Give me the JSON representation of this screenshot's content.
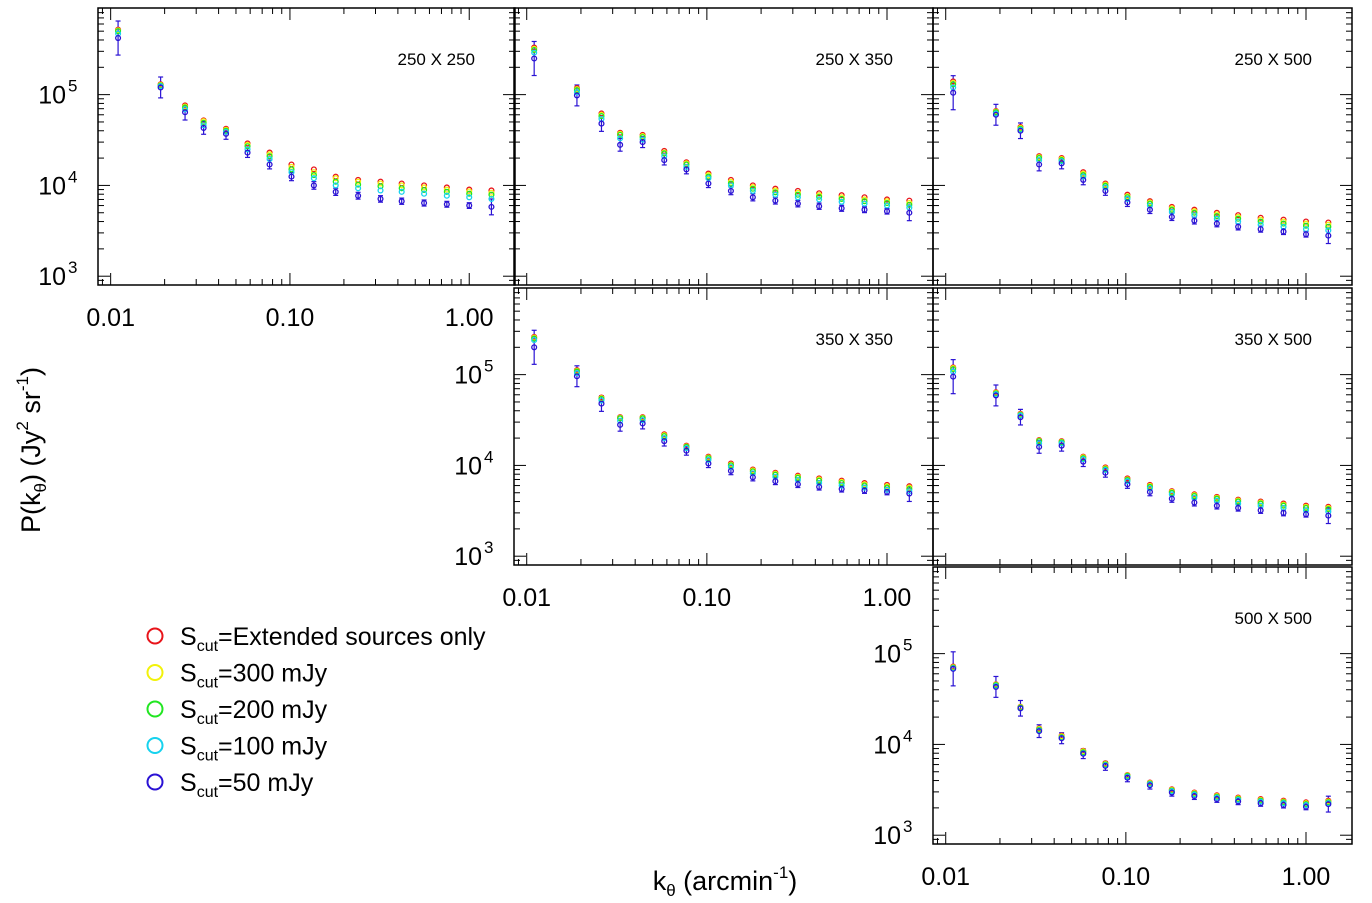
{
  "figure": {
    "y_label_main": "P(k",
    "y_label_sub": "θ",
    "y_label_close": ") (Jy",
    "y_label_sup2": "2",
    "y_label_sr": " sr",
    "y_label_supm1": "-1",
    "y_label_end": ")",
    "x_label_main": "k",
    "x_label_sub": "θ",
    "x_label_paren": " (arcmin",
    "x_label_sup": "-1",
    "x_label_end": ")"
  },
  "legend": [
    {
      "prefix": "S",
      "sub": "cut",
      "text": "=Extended sources only",
      "color": "#e8141a"
    },
    {
      "prefix": "S",
      "sub": "cut",
      "text": "=300 mJy",
      "color": "#f2f20a"
    },
    {
      "prefix": "S",
      "sub": "cut",
      "text": "=200 mJy",
      "color": "#22e622"
    },
    {
      "prefix": "S",
      "sub": "cut",
      "text": "=100 mJy",
      "color": "#16d2ee"
    },
    {
      "prefix": "S",
      "sub": "cut",
      "text": "=50 mJy",
      "color": "#2a12d4"
    }
  ],
  "chart_data": [
    {
      "type": "scatter",
      "title": "250 X 250",
      "xscale": "log",
      "yscale": "log",
      "xlim": [
        0.0085,
        1.8
      ],
      "ylim": [
        800,
        900000
      ],
      "x": [
        0.011,
        0.019,
        0.026,
        0.033,
        0.044,
        0.058,
        0.077,
        0.102,
        0.136,
        0.18,
        0.24,
        0.32,
        0.42,
        0.56,
        0.75,
        1.0,
        1.33
      ],
      "xticks": [
        "0.01",
        "0.10",
        "1.00"
      ],
      "show_xticks": true,
      "yticks": [
        {
          "b": "10",
          "e": "3"
        },
        {
          "b": "10",
          "e": "4"
        },
        {
          "b": "10",
          "e": "5"
        }
      ],
      "series": [
        {
          "color": "#e8141a",
          "values": [
            520000,
            130000,
            76000,
            52000,
            42000,
            29000,
            23000,
            17000,
            15000,
            12500,
            11500,
            11000,
            10500,
            10000,
            9500,
            9000,
            8800
          ]
        },
        {
          "color": "#f2f20a",
          "values": [
            510000,
            128000,
            74000,
            51000,
            41000,
            28000,
            22000,
            16000,
            14000,
            12000,
            11000,
            10500,
            10000,
            9500,
            9000,
            8600,
            8300
          ]
        },
        {
          "color": "#22e622",
          "values": [
            500000,
            126000,
            72000,
            49000,
            40000,
            27000,
            21000,
            15000,
            13000,
            11000,
            10200,
            9800,
            9300,
            8900,
            8500,
            8100,
            7900
          ]
        },
        {
          "color": "#16d2ee",
          "values": [
            470000,
            124000,
            69000,
            46000,
            39000,
            25000,
            19500,
            14000,
            12000,
            10000,
            9300,
            8800,
            8500,
            8100,
            7700,
            7400,
            7100
          ]
        },
        {
          "color": "#2a12d4",
          "values": [
            420000,
            120000,
            64000,
            43000,
            37000,
            23000,
            17000,
            12500,
            10000,
            8500,
            7700,
            7100,
            6700,
            6400,
            6200,
            6000,
            5800
          ]
        }
      ]
    },
    {
      "type": "scatter",
      "title": "250 X 350",
      "xscale": "log",
      "yscale": "log",
      "xlim": [
        0.0085,
        1.8
      ],
      "ylim": [
        800,
        900000
      ],
      "x": [
        0.011,
        0.019,
        0.026,
        0.033,
        0.044,
        0.058,
        0.077,
        0.102,
        0.136,
        0.18,
        0.24,
        0.32,
        0.42,
        0.56,
        0.75,
        1.0,
        1.33
      ],
      "xticks": [],
      "show_xticks": false,
      "yticks": [],
      "series": [
        {
          "color": "#e8141a",
          "values": [
            330000,
            118000,
            62000,
            38000,
            36000,
            24000,
            18000,
            13500,
            11500,
            10000,
            9200,
            8700,
            8200,
            7800,
            7400,
            7000,
            6800
          ]
        },
        {
          "color": "#f2f20a",
          "values": [
            320000,
            115000,
            60000,
            37000,
            35000,
            23000,
            17500,
            13000,
            11000,
            9600,
            8800,
            8300,
            7800,
            7400,
            7000,
            6700,
            6400
          ]
        },
        {
          "color": "#22e622",
          "values": [
            310000,
            112000,
            58000,
            36000,
            34000,
            22500,
            17000,
            12500,
            10500,
            9200,
            8400,
            7900,
            7500,
            7100,
            6700,
            6400,
            6100
          ]
        },
        {
          "color": "#16d2ee",
          "values": [
            290000,
            106000,
            54000,
            33000,
            32000,
            21000,
            16000,
            12000,
            10000,
            8700,
            7900,
            7400,
            7000,
            6600,
            6300,
            6000,
            5700
          ]
        },
        {
          "color": "#2a12d4",
          "values": [
            250000,
            98000,
            48000,
            28000,
            30000,
            19000,
            15000,
            10500,
            8700,
            7400,
            6800,
            6300,
            5900,
            5600,
            5400,
            5200,
            5000
          ]
        }
      ]
    },
    {
      "type": "scatter",
      "title": "250 X 500",
      "xscale": "log",
      "yscale": "log",
      "xlim": [
        0.0085,
        1.8
      ],
      "ylim": [
        800,
        900000
      ],
      "x": [
        0.011,
        0.019,
        0.026,
        0.033,
        0.044,
        0.058,
        0.077,
        0.102,
        0.136,
        0.18,
        0.24,
        0.32,
        0.42,
        0.56,
        0.75,
        1.0,
        1.33
      ],
      "xticks": [],
      "show_xticks": false,
      "yticks": [],
      "series": [
        {
          "color": "#e8141a",
          "values": [
            140000,
            66000,
            44000,
            21000,
            20000,
            14000,
            10500,
            7900,
            6700,
            5800,
            5400,
            5000,
            4700,
            4400,
            4200,
            4000,
            3900
          ]
        },
        {
          "color": "#f2f20a",
          "values": [
            135000,
            65000,
            43000,
            20500,
            19500,
            13500,
            10200,
            7600,
            6500,
            5600,
            5200,
            4800,
            4500,
            4200,
            4000,
            3800,
            3700
          ]
        },
        {
          "color": "#22e622",
          "values": [
            130000,
            64000,
            42000,
            20000,
            19000,
            13000,
            9900,
            7400,
            6300,
            5400,
            5000,
            4600,
            4300,
            4000,
            3800,
            3600,
            3500
          ]
        },
        {
          "color": "#16d2ee",
          "values": [
            120000,
            62000,
            41000,
            19000,
            18500,
            12500,
            9500,
            7100,
            6000,
            5100,
            4700,
            4300,
            4000,
            3700,
            3500,
            3300,
            3200
          ]
        },
        {
          "color": "#2a12d4",
          "values": [
            105000,
            60000,
            40000,
            17000,
            17500,
            11500,
            8700,
            6500,
            5400,
            4500,
            4100,
            3800,
            3500,
            3300,
            3100,
            2900,
            2800
          ]
        }
      ]
    },
    {
      "type": "scatter",
      "title": "350 X 350",
      "xscale": "log",
      "yscale": "log",
      "xlim": [
        0.0085,
        1.8
      ],
      "ylim": [
        800,
        900000
      ],
      "x": [
        0.011,
        0.019,
        0.026,
        0.033,
        0.044,
        0.058,
        0.077,
        0.102,
        0.136,
        0.18,
        0.24,
        0.32,
        0.42,
        0.56,
        0.75,
        1.0,
        1.33
      ],
      "xticks": [
        "0.01",
        "0.10",
        "1.00"
      ],
      "show_xticks": true,
      "yticks": [
        {
          "b": "10",
          "e": "3"
        },
        {
          "b": "10",
          "e": "4"
        },
        {
          "b": "10",
          "e": "5"
        }
      ],
      "series": [
        {
          "color": "#e8141a",
          "values": [
            260000,
            112000,
            56000,
            34000,
            34000,
            22000,
            16500,
            12500,
            10500,
            9000,
            8300,
            7700,
            7200,
            6800,
            6400,
            6100,
            5900
          ]
        },
        {
          "color": "#f2f20a",
          "values": [
            255000,
            110000,
            55000,
            33500,
            33500,
            21500,
            16200,
            12200,
            10200,
            8800,
            8100,
            7500,
            7000,
            6600,
            6200,
            5900,
            5700
          ]
        },
        {
          "color": "#22e622",
          "values": [
            250000,
            108000,
            54000,
            33000,
            33000,
            21000,
            16000,
            12000,
            10000,
            8600,
            7900,
            7300,
            6800,
            6400,
            6000,
            5700,
            5500
          ]
        },
        {
          "color": "#16d2ee",
          "values": [
            240000,
            104000,
            52000,
            31000,
            31500,
            20000,
            15500,
            11500,
            9600,
            8200,
            7500,
            6900,
            6400,
            6000,
            5700,
            5400,
            5200
          ]
        },
        {
          "color": "#2a12d4",
          "values": [
            200000,
            96000,
            48000,
            28000,
            29000,
            18500,
            14500,
            10500,
            8700,
            7400,
            6700,
            6200,
            5800,
            5500,
            5300,
            5100,
            4900
          ]
        }
      ]
    },
    {
      "type": "scatter",
      "title": "350 X 500",
      "xscale": "log",
      "yscale": "log",
      "xlim": [
        0.0085,
        1.8
      ],
      "ylim": [
        800,
        900000
      ],
      "x": [
        0.011,
        0.019,
        0.026,
        0.033,
        0.044,
        0.058,
        0.077,
        0.102,
        0.136,
        0.18,
        0.24,
        0.32,
        0.42,
        0.56,
        0.75,
        1.0,
        1.33
      ],
      "xticks": [],
      "show_xticks": false,
      "yticks": [],
      "series": [
        {
          "color": "#e8141a",
          "values": [
            120000,
            64000,
            37000,
            19000,
            18500,
            12500,
            9500,
            7200,
            6100,
            5200,
            4800,
            4500,
            4200,
            4000,
            3800,
            3600,
            3500
          ]
        },
        {
          "color": "#f2f20a",
          "values": [
            118000,
            63000,
            36500,
            18700,
            18200,
            12300,
            9300,
            7000,
            5950,
            5100,
            4700,
            4400,
            4100,
            3900,
            3700,
            3500,
            3400
          ]
        },
        {
          "color": "#22e622",
          "values": [
            115000,
            62000,
            36000,
            18500,
            18000,
            12000,
            9100,
            6900,
            5800,
            5000,
            4600,
            4300,
            4000,
            3800,
            3600,
            3400,
            3300
          ]
        },
        {
          "color": "#16d2ee",
          "values": [
            108000,
            61000,
            35500,
            17500,
            17500,
            11700,
            8900,
            6700,
            5600,
            4800,
            4400,
            4100,
            3800,
            3600,
            3400,
            3200,
            3100
          ]
        },
        {
          "color": "#2a12d4",
          "values": [
            95000,
            59000,
            34000,
            16000,
            16500,
            11000,
            8300,
            6200,
            5100,
            4300,
            3900,
            3600,
            3400,
            3200,
            3000,
            2900,
            2800
          ]
        }
      ]
    },
    {
      "type": "scatter",
      "title": "500 X 500",
      "xscale": "log",
      "yscale": "log",
      "xlim": [
        0.0085,
        1.8
      ],
      "ylim": [
        800,
        900000
      ],
      "x": [
        0.011,
        0.019,
        0.026,
        0.033,
        0.044,
        0.058,
        0.077,
        0.102,
        0.136,
        0.18,
        0.24,
        0.32,
        0.42,
        0.56,
        0.75,
        1.0,
        1.33
      ],
      "xticks": [
        "0.01",
        "0.10",
        "1.00"
      ],
      "show_xticks": true,
      "yticks": [
        {
          "b": "10",
          "e": "3"
        },
        {
          "b": "10",
          "e": "4"
        },
        {
          "b": "10",
          "e": "5"
        }
      ],
      "series": [
        {
          "color": "#e8141a",
          "values": [
            72000,
            46000,
            26000,
            15000,
            12500,
            8500,
            6200,
            4600,
            3800,
            3200,
            2950,
            2750,
            2600,
            2500,
            2400,
            2300,
            2400
          ]
        },
        {
          "color": "#f2f20a",
          "values": [
            71000,
            45500,
            25800,
            14800,
            12300,
            8400,
            6100,
            4550,
            3750,
            3150,
            2900,
            2700,
            2550,
            2450,
            2350,
            2250,
            2350
          ]
        },
        {
          "color": "#22e622",
          "values": [
            70000,
            45000,
            25500,
            14500,
            12000,
            8200,
            6000,
            4500,
            3700,
            3100,
            2850,
            2650,
            2500,
            2400,
            2300,
            2200,
            2300
          ]
        },
        {
          "color": "#16d2ee",
          "values": [
            69000,
            44000,
            25000,
            14200,
            11800,
            8000,
            5900,
            4400,
            3650,
            3050,
            2800,
            2600,
            2450,
            2350,
            2250,
            2150,
            2250
          ]
        },
        {
          "color": "#2a12d4",
          "values": [
            68000,
            43000,
            25000,
            14000,
            11700,
            7900,
            5800,
            4300,
            3550,
            2950,
            2700,
            2500,
            2350,
            2250,
            2150,
            2050,
            2200
          ]
        }
      ]
    }
  ]
}
